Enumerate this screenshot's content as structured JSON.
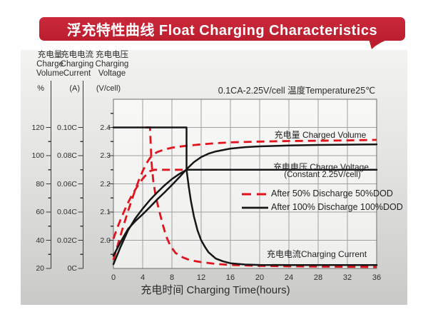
{
  "banner": {
    "title": "浮充特性曲线 Float Charging Characteristics",
    "color": "#bd1e2e"
  },
  "axis_headers": [
    {
      "lines": [
        "充电量",
        "Charge",
        "Volume"
      ],
      "unit": "%"
    },
    {
      "lines": [
        "充电电流",
        "Charging",
        "Current"
      ],
      "unit": "(A)"
    },
    {
      "lines": [
        "充电电压",
        "Charging",
        "Voltage"
      ],
      "unit": "(V/cell)"
    }
  ],
  "chart_data": {
    "type": "line",
    "condition": "0.1CA-2.25V/cell  温度Temperature25℃",
    "x_axis": {
      "label": "充电时间 Charging Time(hours)",
      "range": [
        0,
        36
      ],
      "ticks": [
        "0",
        "4",
        "8",
        "12",
        "16",
        "20",
        "24",
        "28",
        "32",
        "36"
      ],
      "grid": true
    },
    "y_axes": {
      "volume": {
        "name": "充电量 Charge Volume",
        "unit": "%",
        "range": [
          20,
          140
        ],
        "ticks": [
          "120",
          "100",
          "80",
          "60",
          "40",
          "20"
        ]
      },
      "current": {
        "name": "充电电流 Charging Current",
        "unit": "A",
        "range": [
          0,
          0.12
        ],
        "ticks": [
          "0.10C",
          "0.08C",
          "0.06C",
          "0.04C",
          "0.02C",
          "0C"
        ]
      },
      "voltage": {
        "name": "充电电压 Charging Voltage",
        "unit": "V/cell",
        "range": [
          1.9,
          2.5
        ],
        "ticks": [
          "2.4",
          "2.3",
          "2.2",
          "2.1",
          "2.0"
        ]
      }
    },
    "curve_labels": {
      "charged_volume": "充电量 Charged Volume",
      "charge_voltage_line1": "充电电压 Charge Voltage",
      "charge_voltage_line2": "(Constant 2.25V/cell)",
      "charging_current": "充电电流Charging Current"
    },
    "legend": [
      {
        "label": "After 50% Discharge 50%DOD",
        "style": "dashed",
        "color": "#e1131d"
      },
      {
        "label": "After 100%  Discharge 100%DOD",
        "style": "solid",
        "color": "#161616"
      }
    ],
    "series": [
      {
        "id": "charged-volume-50dod",
        "quantity": "charged_volume",
        "dod": "50%",
        "axis": "volume",
        "color": "#e1131d",
        "dash": true,
        "points": [
          [
            0,
            26
          ],
          [
            0.5,
            35
          ],
          [
            1,
            44
          ],
          [
            1.5,
            52.4
          ],
          [
            2,
            60.6
          ],
          [
            2.5,
            68.4
          ],
          [
            3,
            76
          ],
          [
            3.5,
            83
          ],
          [
            4,
            89
          ],
          [
            4.5,
            94.4
          ],
          [
            5,
            98.4
          ],
          [
            5.5,
            101
          ],
          [
            6,
            102.6
          ],
          [
            7,
            104.4
          ],
          [
            8,
            105.6
          ],
          [
            9,
            106.4
          ],
          [
            10,
            107
          ],
          [
            12,
            108
          ],
          [
            14,
            108.8
          ],
          [
            16,
            109.4
          ],
          [
            20,
            110
          ],
          [
            24,
            110.4
          ],
          [
            28,
            110.6
          ],
          [
            32,
            110.8
          ],
          [
            36,
            111.2
          ]
        ]
      },
      {
        "id": "charge-voltage-50dod",
        "quantity": "charge_voltage",
        "dod": "50%",
        "axis": "voltage",
        "color": "#e1131d",
        "dash": true,
        "points": [
          [
            0,
            2.005
          ],
          [
            0.5,
            2.042
          ],
          [
            1,
            2.075
          ],
          [
            1.5,
            2.105
          ],
          [
            2,
            2.133
          ],
          [
            2.5,
            2.158
          ],
          [
            3,
            2.18
          ],
          [
            3.5,
            2.2
          ],
          [
            4,
            2.218
          ],
          [
            4.5,
            2.233
          ],
          [
            5,
            2.245
          ],
          [
            5.6,
            2.25
          ],
          [
            10.2,
            2.25
          ]
        ]
      },
      {
        "id": "charging-current-50dod",
        "quantity": "charging_current",
        "dod": "50%",
        "axis": "current",
        "color": "#e1131d",
        "dash": true,
        "points": [
          [
            4.4,
            0.1
          ],
          [
            5.0,
            0.1
          ],
          [
            5.2,
            0.076
          ],
          [
            5.45,
            0.062
          ],
          [
            5.8,
            0.051
          ],
          [
            6.2,
            0.042
          ],
          [
            6.7,
            0.032
          ],
          [
            7.2,
            0.023
          ],
          [
            7.8,
            0.016
          ],
          [
            8.5,
            0.011
          ],
          [
            9.5,
            0.0078
          ],
          [
            10.5,
            0.0058
          ],
          [
            12,
            0.0045
          ],
          [
            14,
            0.0032
          ],
          [
            16,
            0.0025
          ],
          [
            20,
            0.0018
          ],
          [
            28,
            0.0013
          ],
          [
            36,
            0.001
          ]
        ]
      },
      {
        "id": "charged-volume-100dod",
        "quantity": "charged_volume",
        "dod": "100%",
        "axis": "volume",
        "color": "#161616",
        "dash": false,
        "points": [
          [
            0,
            29
          ],
          [
            1,
            39
          ],
          [
            2,
            48
          ],
          [
            3,
            53.6
          ],
          [
            4,
            58.4
          ],
          [
            5,
            63.6
          ],
          [
            6,
            69
          ],
          [
            7,
            74
          ],
          [
            8,
            79.2
          ],
          [
            9,
            84.6
          ],
          [
            10,
            90.4
          ],
          [
            11,
            95.4
          ],
          [
            12,
            99
          ],
          [
            13,
            101.4
          ],
          [
            14,
            103
          ],
          [
            16,
            105
          ],
          [
            18,
            106
          ],
          [
            20,
            106.6
          ],
          [
            24,
            107.2
          ],
          [
            28,
            107.6
          ],
          [
            32,
            107.8
          ],
          [
            36,
            108
          ]
        ]
      },
      {
        "id": "charge-voltage-100dod",
        "quantity": "charge_voltage",
        "dod": "100%",
        "axis": "voltage",
        "color": "#161616",
        "dash": false,
        "points": [
          [
            0,
            1.915
          ],
          [
            1,
            1.978
          ],
          [
            2,
            2.035
          ],
          [
            3,
            2.078
          ],
          [
            4,
            2.112
          ],
          [
            5,
            2.143
          ],
          [
            6,
            2.17
          ],
          [
            7,
            2.195
          ],
          [
            8,
            2.217
          ],
          [
            9,
            2.235
          ],
          [
            10,
            2.25
          ],
          [
            36,
            2.25
          ]
        ]
      },
      {
        "id": "charging-current-100dod",
        "quantity": "charging_current",
        "dod": "100%",
        "axis": "current",
        "color": "#161616",
        "dash": false,
        "points": [
          [
            0,
            0.1
          ],
          [
            10,
            0.1
          ],
          [
            10,
            0.07
          ],
          [
            10.3,
            0.058
          ],
          [
            10.6,
            0.048
          ],
          [
            11,
            0.037
          ],
          [
            11.5,
            0.027
          ],
          [
            12,
            0.02
          ],
          [
            12.5,
            0.0155
          ],
          [
            13,
            0.0115
          ],
          [
            14,
            0.007
          ],
          [
            15,
            0.005
          ],
          [
            16,
            0.0037
          ],
          [
            18,
            0.0028
          ],
          [
            20,
            0.0025
          ],
          [
            24,
            0.0024
          ],
          [
            36,
            0.0024
          ]
        ]
      }
    ]
  }
}
